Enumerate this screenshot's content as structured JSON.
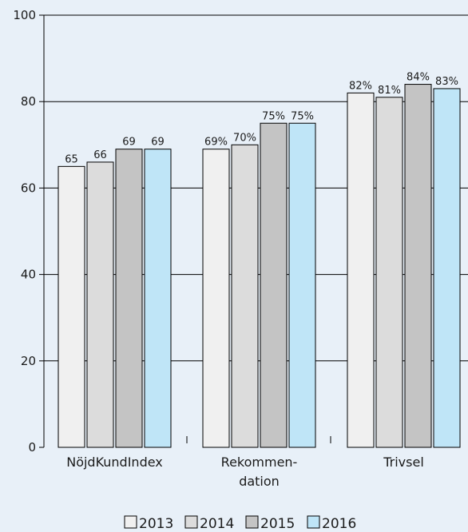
{
  "chart_data": {
    "type": "bar",
    "categories": [
      [
        "NöjdKundIndex"
      ],
      [
        "Rekommen-",
        "dation"
      ],
      [
        "Trivsel"
      ]
    ],
    "series": [
      {
        "name": "2013",
        "color": "#f0f0f0",
        "values": [
          65,
          69,
          82
        ],
        "labels": [
          "65",
          "69%",
          "82%"
        ]
      },
      {
        "name": "2014",
        "color": "#dcdcdc",
        "values": [
          66,
          70,
          81
        ],
        "labels": [
          "66",
          "70%",
          "81%"
        ]
      },
      {
        "name": "2015",
        "color": "#c4c4c4",
        "values": [
          69,
          75,
          84
        ],
        "labels": [
          "69",
          "75%",
          "84%"
        ]
      },
      {
        "name": "2016",
        "color": "#bfe5f7",
        "values": [
          69,
          75,
          83
        ],
        "labels": [
          "69",
          "75%",
          "83%"
        ]
      }
    ],
    "ylim": [
      0,
      100
    ],
    "yticks": [
      "0",
      "20",
      "40",
      "60",
      "80",
      "100"
    ],
    "grid": true,
    "legend": "bottom"
  }
}
